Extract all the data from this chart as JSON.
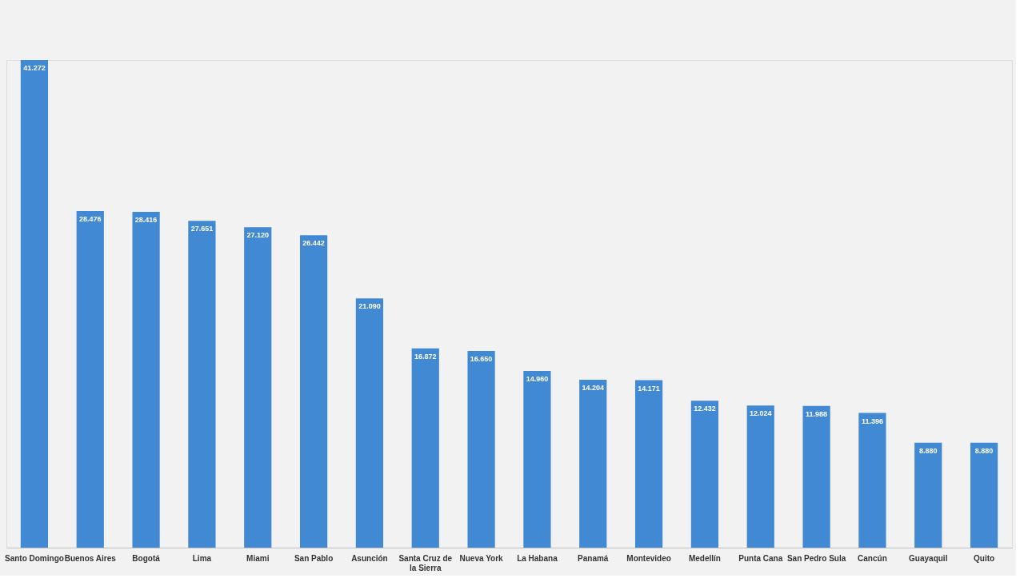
{
  "chart_data": {
    "type": "bar",
    "categories": [
      "Santo Domingo",
      "Buenos Aires",
      "Bogotá",
      "Lima",
      "Miami",
      "San Pablo",
      "Asunción",
      "Santa Cruz de la Sierra",
      "Nueva York",
      "La Habana",
      "Panamá",
      "Montevideo",
      "Medellín",
      "Punta Cana",
      "San Pedro Sula",
      "Cancún",
      "Guayaquil",
      "Quito"
    ],
    "values": [
      41272,
      28476,
      28416,
      27651,
      27120,
      26442,
      21090,
      16872,
      16650,
      14960,
      14204,
      14171,
      12432,
      12024,
      11988,
      11396,
      8880,
      8880
    ],
    "value_labels": [
      "41.272",
      "28.476",
      "28.416",
      "27.651",
      "27.120",
      "26.442",
      "21.090",
      "16.872",
      "16.650",
      "14.960",
      "14.204",
      "14.171",
      "12.432",
      "12.024",
      "11.988",
      "11.396",
      "8.880",
      "8.880"
    ],
    "color": "#4189d2",
    "grid": false,
    "tick_labels": "x"
  }
}
